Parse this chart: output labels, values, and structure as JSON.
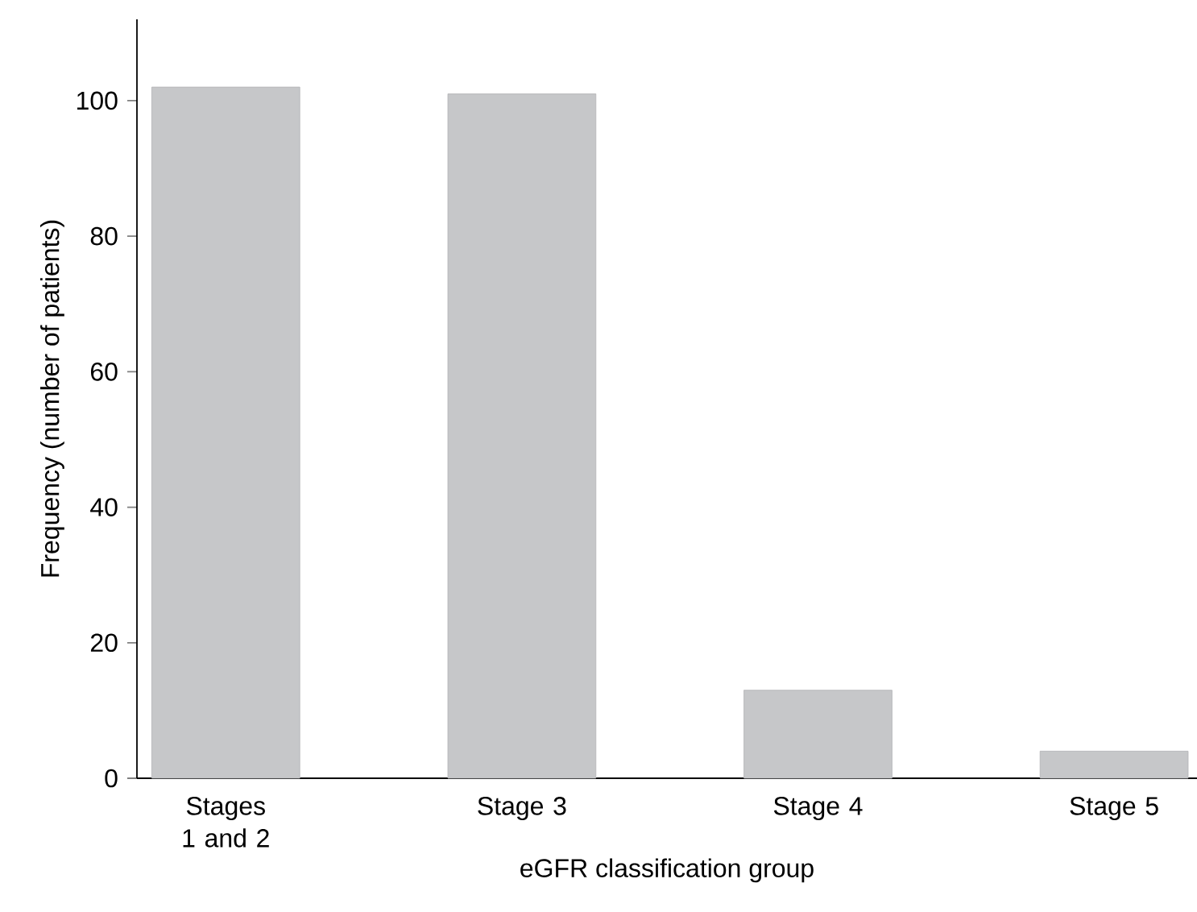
{
  "chart_data": {
    "type": "bar",
    "xlabel": "eGFR classification group",
    "ylabel": "Frequency (number of patients)",
    "categories": [
      "Stages 1 and 2",
      "Stage 3",
      "Stage 4",
      "Stage 5"
    ],
    "values": [
      102,
      101,
      13,
      4
    ],
    "color": "#c6c7c9",
    "ylim": [
      0,
      112
    ],
    "yticks": [
      0,
      20,
      40,
      60,
      80,
      100
    ]
  }
}
